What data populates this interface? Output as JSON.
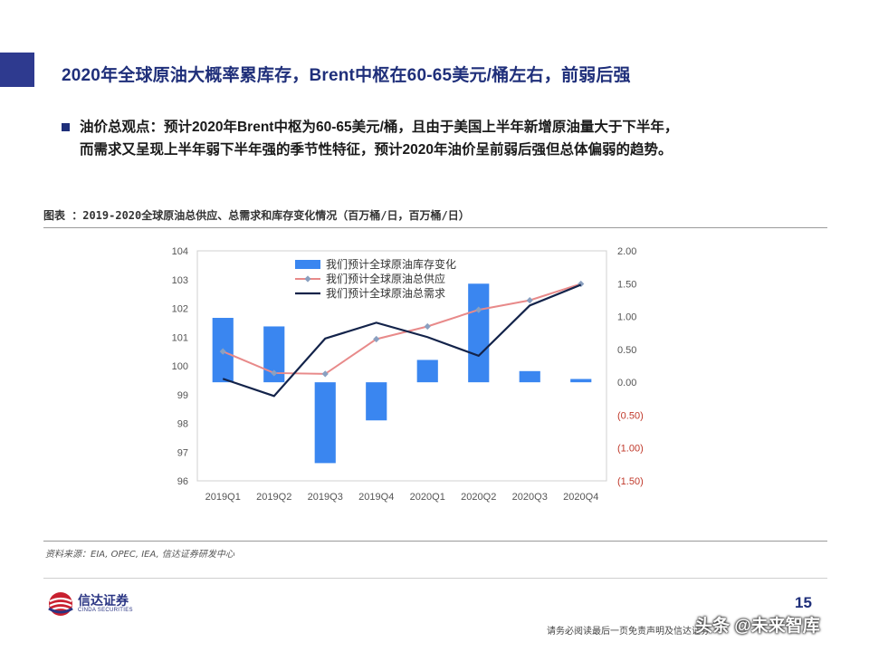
{
  "slide": {
    "title": "2020年全球原油大概率累库存，Brent中枢在60-65美元/桶左右，前弱后强",
    "bullet_line1": "油价总观点：预计2020年Brent中枢为60-65美元/桶，且由于美国上半年新增原油量大于下半年，",
    "bullet_line2": "而需求又呈现上半年弱下半年强的季节性特征，预计2020年油价呈前弱后强但总体偏弱的趋势。",
    "figure_caption": "图表 ：2019-2020全球原油总供应、总需求和库存变化情况（百万桶/日，百万桶/日）",
    "source": "资料来源：EIA, OPEC, IEA, 信达证券研发中心",
    "page_number": "15",
    "disclaimer": "请务必阅读最后一页免责声明及信达证券",
    "watermark": "头条 @未来智库",
    "logo_cn": "信达证券",
    "logo_en": "CINDA SECURITIES"
  },
  "colors": {
    "title_blue": "#1f2f7a",
    "bar_blue": "#3a86f0",
    "supply_pink": "#e88a8a",
    "supply_marker": "#8aa0c0",
    "demand_navy": "#13234a",
    "negative_red": "#c0392b"
  },
  "chart_data": {
    "type": "bar+line",
    "categories": [
      "2019Q1",
      "2019Q2",
      "2019Q3",
      "2019Q4",
      "2020Q1",
      "2020Q2",
      "2020Q3",
      "2020Q4"
    ],
    "left_axis": {
      "ylim": [
        96,
        104
      ],
      "ticks": [
        "96",
        "97",
        "98",
        "99",
        "100",
        "101",
        "102",
        "103",
        "104"
      ]
    },
    "right_axis": {
      "ylim": [
        -1.5,
        2.0
      ],
      "ticks": [
        "(1.50)",
        "(1.00)",
        "(0.50)",
        "0.00",
        "0.50",
        "1.00",
        "1.50",
        "2.00"
      ],
      "negative_color": "#c0392b"
    },
    "series": [
      {
        "name": "我们预计全球原油库存变化",
        "kind": "bar",
        "axis": "right",
        "values": [
          0.98,
          0.85,
          -1.23,
          -0.58,
          0.34,
          1.5,
          0.17,
          0.05
        ]
      },
      {
        "name": "我们预计全球原油总供应",
        "kind": "line",
        "axis": "left",
        "marker": "diamond",
        "values": [
          100.5,
          99.75,
          99.72,
          100.93,
          101.37,
          101.95,
          102.28,
          102.85
        ]
      },
      {
        "name": "我们预计全球原油总需求",
        "kind": "line",
        "axis": "left",
        "marker": "none",
        "values": [
          99.55,
          98.95,
          100.95,
          101.5,
          101.0,
          100.35,
          102.1,
          102.82
        ]
      }
    ],
    "legend_position": "top-left",
    "grid": false
  }
}
